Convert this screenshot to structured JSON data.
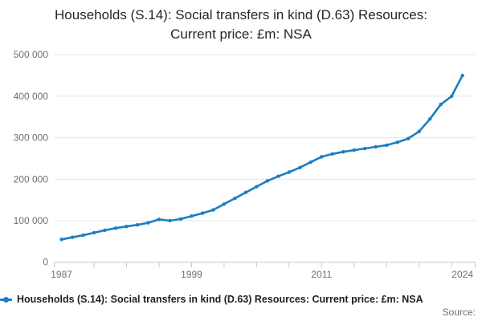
{
  "title": {
    "line1": "Households (S.14): Social transfers in kind (D.63) Resources:",
    "line2": "Current price: £m: NSA"
  },
  "legend": {
    "label": "Households (S.14): Social transfers in kind (D.63) Resources: Current price: £m: NSA"
  },
  "source": {
    "label": "Source:"
  },
  "colors": {
    "series": "#1b7ec2",
    "grid": "#e6e6e6",
    "axis": "#b9c8d4",
    "tick_text": "#6f6f6f",
    "title_text": "#262626"
  },
  "chart_data": {
    "type": "line",
    "title": "Households (S.14): Social transfers in kind (D.63) Resources: Current price: £m: NSA",
    "xlabel": "",
    "ylabel": "",
    "x": [
      1987,
      1988,
      1989,
      1990,
      1991,
      1992,
      1993,
      1994,
      1995,
      1996,
      1997,
      1998,
      1999,
      2000,
      2001,
      2002,
      2003,
      2004,
      2005,
      2006,
      2007,
      2008,
      2009,
      2010,
      2011,
      2012,
      2013,
      2014,
      2015,
      2016,
      2017,
      2018,
      2019,
      2020,
      2021,
      2022,
      2023,
      2024
    ],
    "series": [
      {
        "name": "Households (S.14): Social transfers in kind (D.63) Resources: Current price: £m: NSA",
        "values": [
          55000,
          60000,
          65000,
          71000,
          77000,
          82000,
          86000,
          90000,
          95000,
          103000,
          100000,
          104000,
          111000,
          118000,
          126000,
          140000,
          154000,
          168000,
          182000,
          196000,
          207000,
          217000,
          228000,
          241000,
          254000,
          261000,
          266000,
          270000,
          274000,
          278000,
          282000,
          289000,
          298000,
          315000,
          345000,
          380000,
          400000,
          450000
        ]
      }
    ],
    "ylim": [
      0,
      500000
    ],
    "y_ticks": [
      0,
      100000,
      200000,
      300000,
      400000,
      500000
    ],
    "x_tick_labeled_years": [
      1987,
      1999,
      2011,
      2024
    ],
    "x_minor_tick_years": [
      1990,
      1993,
      1996,
      1999,
      2002,
      2005,
      2008,
      2011,
      2014,
      2017,
      2020,
      2023
    ],
    "grid": "horizontal-only",
    "legend_position": "bottom-left",
    "markers": true
  }
}
